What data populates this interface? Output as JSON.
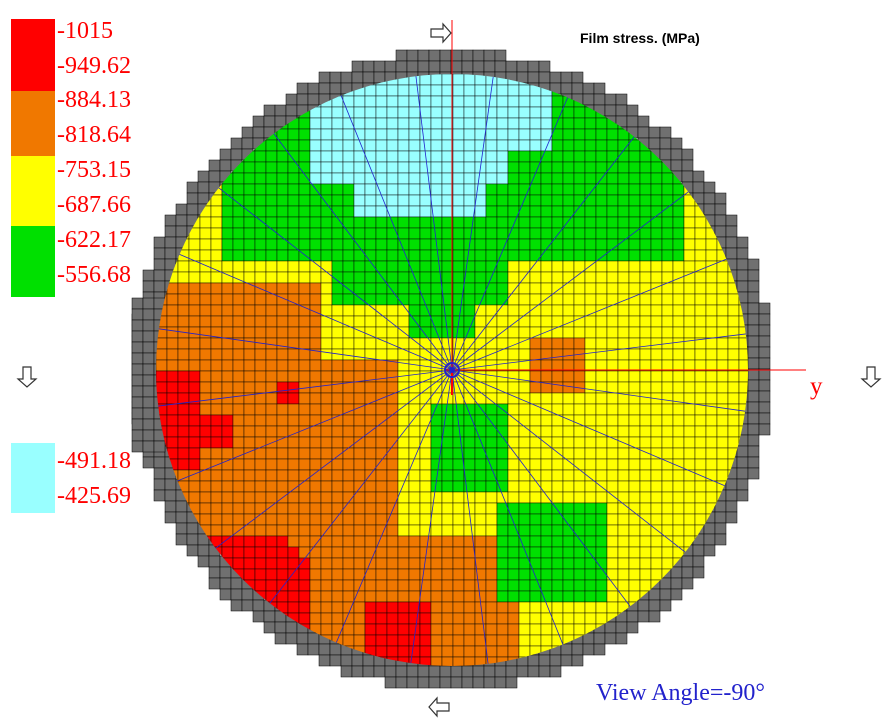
{
  "chart_data": {
    "type": "heatmap",
    "title": "Film stress. (MPa)",
    "view_angle": "View Angle=-90°",
    "axis_label": "y",
    "legend": [
      {
        "label": "-1015",
        "color": "#ff0000"
      },
      {
        "label": "-949.62",
        "color": "#ff0000"
      },
      {
        "label": "-884.13",
        "color": "#f07800"
      },
      {
        "label": "-818.64",
        "color": "#f07800"
      },
      {
        "label": "-753.15",
        "color": "#ffff00"
      },
      {
        "label": "-687.66",
        "color": "#ffff00"
      },
      {
        "label": "-622.17",
        "color": "#00e000"
      },
      {
        "label": "-556.68",
        "color": "#00e000"
      },
      {
        "label": "-491.18",
        "color": "#99ffff"
      },
      {
        "label": "-425.69",
        "color": "#99ffff"
      }
    ],
    "colors": {
      "red": "#ff0000",
      "orange": "#f07800",
      "yellow": "#ffff00",
      "green": "#00e000",
      "cyan": "#99ffff",
      "edge": "#707070",
      "grid": "#000000",
      "axis": "#ff0000",
      "radial": "#2222cc"
    },
    "arrow_icons": [
      "arrow-top-icon",
      "arrow-left-icon",
      "arrow-right-icon",
      "arrow-bottom-icon"
    ]
  }
}
